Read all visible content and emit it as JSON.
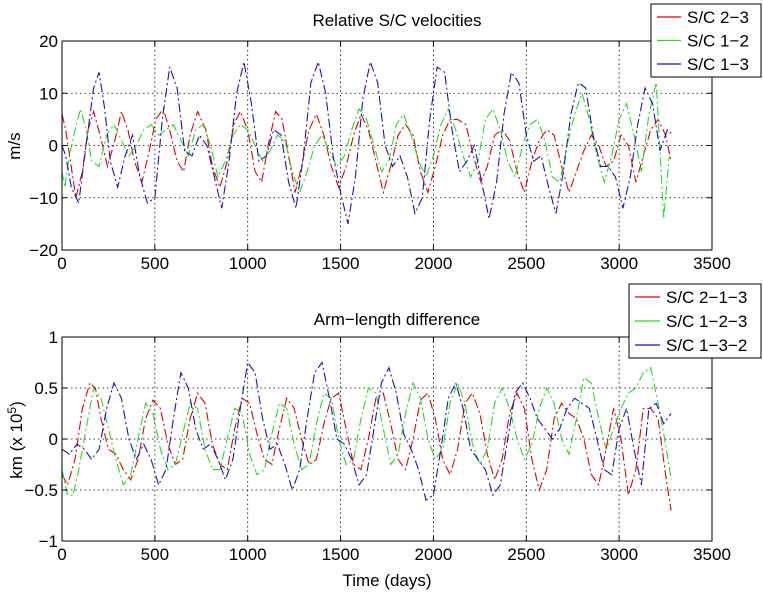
{
  "figure": {
    "xlabel": "Time (days)"
  },
  "chart_data": [
    {
      "type": "line",
      "title": "Relative S/C velocities",
      "xlabel": "",
      "ylabel": "m/s",
      "xlim": [
        0,
        3500
      ],
      "ylim": [
        -20,
        20
      ],
      "x_ticks": [
        0,
        500,
        1000,
        1500,
        2000,
        2500,
        3000,
        3500
      ],
      "y_ticks": [
        -20,
        -10,
        0,
        10,
        20
      ],
      "y_tick_labels": [
        "−20",
        "−10",
        "0",
        "10",
        "20"
      ],
      "grid": true,
      "legend_position": "top-right",
      "series": [
        {
          "name": "S/C 2−3",
          "color": "#e00000",
          "x": [
            0,
            20,
            45,
            75,
            110,
            140,
            170,
            205,
            245,
            285,
            320,
            355,
            390,
            430,
            470,
            505,
            545,
            580,
            620,
            655,
            690,
            730,
            775,
            810,
            850,
            890,
            925,
            960,
            1000,
            1040,
            1075,
            1110,
            1150,
            1185,
            1220,
            1255,
            1290,
            1330,
            1370,
            1410,
            1450,
            1490,
            1530,
            1570,
            1610,
            1650,
            1690,
            1730,
            1770,
            1810,
            1850,
            1890,
            1930,
            1970,
            2010,
            2050,
            2090,
            2130,
            2175,
            2215,
            2255,
            2290,
            2330,
            2370,
            2410,
            2450,
            2490,
            2530,
            2570,
            2610,
            2650,
            2690,
            2730,
            2770,
            2810,
            2850,
            2890,
            2930,
            2970,
            3010,
            3050,
            3090,
            3130,
            3170,
            3210,
            3250,
            3280
          ],
          "values": [
            6,
            3,
            -3,
            -10,
            -5,
            3,
            6.5,
            2,
            -4,
            1,
            6.5,
            3,
            -3,
            -7,
            -1,
            5,
            7,
            3,
            -3,
            -5,
            2,
            6.5,
            3,
            -4,
            -8,
            -3,
            4,
            6.5,
            3,
            -5,
            -7,
            0,
            6.5,
            5,
            -2,
            -9,
            -4,
            3,
            6,
            2,
            -4,
            -8,
            -4,
            2,
            6,
            3,
            -3,
            -9,
            -4,
            2,
            4,
            2,
            -5,
            -9,
            -4,
            2,
            5,
            5,
            4,
            -2,
            -7,
            -4,
            2,
            3,
            1,
            -5,
            -9,
            -3,
            1,
            3,
            2,
            -4,
            -9,
            -5,
            -1,
            2,
            0,
            -4,
            -3,
            2,
            0,
            -7,
            -2,
            3,
            5,
            2,
            -3
          ]
        },
        {
          "name": "S/C 1−2",
          "color": "#22dd22",
          "x": [
            0,
            15,
            40,
            70,
            100,
            130,
            160,
            200,
            240,
            280,
            320,
            360,
            400,
            440,
            480,
            520,
            560,
            600,
            640,
            680,
            720,
            760,
            800,
            840,
            880,
            920,
            960,
            1000,
            1040,
            1080,
            1120,
            1160,
            1200,
            1240,
            1280,
            1320,
            1360,
            1400,
            1440,
            1480,
            1520,
            1560,
            1600,
            1640,
            1680,
            1720,
            1760,
            1800,
            1840,
            1880,
            1920,
            1960,
            2000,
            2040,
            2080,
            2120,
            2160,
            2200,
            2240,
            2280,
            2320,
            2360,
            2400,
            2440,
            2480,
            2520,
            2560,
            2600,
            2640,
            2680,
            2720,
            2760,
            2800,
            2840,
            2880,
            2920,
            2960,
            3000,
            3040,
            3080,
            3120,
            3160,
            3200,
            3240,
            3270
          ],
          "values": [
            -5,
            -8,
            -2,
            3,
            7,
            3,
            -3,
            -4,
            2,
            4,
            1,
            -2,
            0,
            3,
            4,
            2,
            3,
            4,
            1,
            -2,
            3,
            4,
            0,
            -6,
            -3,
            2,
            4,
            3,
            0,
            -3,
            -1,
            2,
            1,
            -5,
            -9,
            -5,
            0,
            2,
            -1,
            -4,
            -2,
            3,
            7,
            5,
            0,
            -5,
            -3,
            4,
            6,
            2,
            -3,
            -6,
            -2,
            4,
            7,
            3,
            -2,
            -6,
            -3,
            5,
            7,
            3,
            -3,
            -6,
            0,
            4,
            5,
            1,
            -6,
            -7,
            0,
            6,
            10,
            5,
            -2,
            -7,
            -2,
            5,
            8,
            2,
            -5,
            6,
            12,
            -14,
            -2
          ]
        },
        {
          "name": "S/C 1−3",
          "color": "#1515c0",
          "x": [
            0,
            20,
            50,
            90,
            130,
            170,
            200,
            230,
            260,
            300,
            340,
            380,
            420,
            460,
            500,
            540,
            580,
            620,
            660,
            700,
            740,
            780,
            820,
            860,
            900,
            940,
            980,
            1020,
            1060,
            1100,
            1140,
            1180,
            1220,
            1260,
            1300,
            1340,
            1380,
            1420,
            1460,
            1500,
            1540,
            1580,
            1620,
            1660,
            1700,
            1740,
            1780,
            1820,
            1860,
            1900,
            1940,
            1980,
            2020,
            2060,
            2100,
            2140,
            2180,
            2220,
            2260,
            2300,
            2340,
            2380,
            2420,
            2460,
            2500,
            2540,
            2580,
            2620,
            2660,
            2700,
            2740,
            2780,
            2820,
            2860,
            2900,
            2940,
            2980,
            3020,
            3060,
            3100,
            3140,
            3180,
            3220,
            3260,
            3290
          ],
          "values": [
            0,
            -2,
            -8,
            -11,
            0,
            11,
            14,
            7,
            -3,
            -8,
            -2,
            2,
            -6,
            -11,
            -10,
            5,
            15,
            11,
            -1,
            -2,
            2,
            0,
            -6,
            -12,
            -3,
            10,
            16,
            8,
            -3,
            -2,
            3,
            2,
            -7,
            -12,
            -2,
            12,
            16,
            10,
            -2,
            -9,
            -15,
            -6,
            9,
            16,
            12,
            0,
            -4,
            -2,
            -6,
            -13,
            -10,
            5,
            15,
            14,
            3,
            -5,
            -3,
            0,
            -7,
            -14,
            -7,
            6,
            14,
            12,
            2,
            -3,
            -2,
            -8,
            -13,
            -5,
            6,
            12,
            11,
            2,
            -4,
            -4,
            -6,
            -12,
            -6,
            4,
            11,
            8,
            -1,
            3,
            2
          ]
        }
      ]
    },
    {
      "type": "line",
      "title": "Arm−length difference",
      "xlabel": "Time (days)",
      "ylabel_text": "km (x 10",
      "ylabel_exp": "5",
      "ylabel_close": ")",
      "xlim": [
        0,
        3500
      ],
      "ylim": [
        -1,
        1
      ],
      "x_ticks": [
        0,
        500,
        1000,
        1500,
        2000,
        2500,
        3000,
        3500
      ],
      "y_ticks": [
        -1,
        -0.5,
        0,
        0.5,
        1
      ],
      "y_tick_labels": [
        "−1",
        "−0.5",
        "0",
        "0.5",
        "1"
      ],
      "grid": true,
      "legend_position": "top-right",
      "series": [
        {
          "name": "S/C 2−1−3",
          "color": "#e00000",
          "x": [
            0,
            30,
            70,
            110,
            150,
            180,
            210,
            250,
            290,
            330,
            370,
            410,
            450,
            490,
            530,
            570,
            610,
            650,
            690,
            730,
            770,
            810,
            850,
            890,
            930,
            970,
            1010,
            1050,
            1090,
            1130,
            1170,
            1210,
            1250,
            1290,
            1330,
            1370,
            1410,
            1450,
            1490,
            1530,
            1570,
            1610,
            1650,
            1690,
            1730,
            1770,
            1810,
            1850,
            1890,
            1930,
            1970,
            2010,
            2050,
            2090,
            2130,
            2170,
            2210,
            2250,
            2290,
            2330,
            2370,
            2410,
            2450,
            2490,
            2530,
            2570,
            2610,
            2650,
            2690,
            2730,
            2770,
            2810,
            2850,
            2890,
            2930,
            2970,
            3010,
            3050,
            3090,
            3130,
            3170,
            3210,
            3250,
            3280
          ],
          "values": [
            -0.35,
            -0.45,
            -0.2,
            0.3,
            0.55,
            0.5,
            0.2,
            -0.1,
            -0.15,
            -0.3,
            -0.4,
            -0.2,
            0.2,
            0.38,
            0.3,
            -0.05,
            -0.25,
            -0.2,
            0.2,
            0.45,
            0.35,
            -0.05,
            -0.25,
            -0.3,
            0.1,
            0.4,
            0.35,
            0.05,
            -0.2,
            -0.25,
            0.1,
            0.4,
            0.3,
            0.0,
            -0.25,
            -0.2,
            0.15,
            0.4,
            0.45,
            0.1,
            -0.25,
            -0.3,
            0.0,
            0.4,
            0.45,
            0.15,
            -0.2,
            -0.3,
            0.0,
            0.38,
            0.45,
            0.2,
            -0.2,
            -0.35,
            -0.1,
            0.35,
            0.45,
            0.25,
            -0.15,
            -0.4,
            -0.2,
            0.25,
            0.45,
            0.3,
            -0.2,
            -0.5,
            -0.3,
            0.2,
            0.35,
            0.25,
            0.2,
            0.0,
            -0.35,
            -0.45,
            -0.1,
            0.3,
            0.0,
            -0.55,
            -0.3,
            0.3,
            0.3,
            0.2,
            -0.35,
            -0.7
          ]
        },
        {
          "name": "S/C 1−2−3",
          "color": "#22dd22",
          "x": [
            0,
            30,
            60,
            90,
            130,
            170,
            210,
            250,
            290,
            330,
            370,
            410,
            450,
            490,
            530,
            570,
            610,
            650,
            690,
            730,
            770,
            810,
            850,
            890,
            930,
            970,
            1010,
            1050,
            1090,
            1130,
            1170,
            1210,
            1250,
            1290,
            1330,
            1370,
            1410,
            1450,
            1490,
            1530,
            1570,
            1610,
            1650,
            1690,
            1730,
            1770,
            1810,
            1850,
            1890,
            1930,
            1970,
            2010,
            2050,
            2090,
            2130,
            2170,
            2210,
            2250,
            2290,
            2330,
            2370,
            2410,
            2450,
            2490,
            2530,
            2570,
            2610,
            2650,
            2690,
            2730,
            2770,
            2810,
            2850,
            2890,
            2930,
            2970,
            3010,
            3050,
            3090,
            3130,
            3170,
            3210,
            3250,
            3280
          ],
          "values": [
            -0.3,
            -0.55,
            -0.55,
            -0.3,
            0.1,
            0.5,
            0.4,
            0.1,
            -0.2,
            -0.45,
            -0.35,
            0.0,
            0.35,
            0.25,
            -0.1,
            -0.3,
            -0.25,
            0.05,
            0.35,
            0.3,
            -0.1,
            -0.3,
            -0.3,
            0.0,
            0.3,
            0.25,
            -0.15,
            -0.35,
            -0.3,
            0.05,
            0.35,
            0.3,
            -0.05,
            -0.3,
            -0.25,
            0.15,
            0.45,
            0.4,
            0.0,
            -0.25,
            -0.2,
            0.2,
            0.5,
            0.45,
            0.1,
            -0.25,
            -0.15,
            0.25,
            0.55,
            0.4,
            0.0,
            -0.2,
            -0.1,
            0.35,
            0.55,
            0.35,
            -0.05,
            -0.25,
            -0.1,
            0.35,
            0.5,
            0.3,
            0.0,
            -0.2,
            -0.05,
            0.3,
            0.5,
            0.35,
            0.0,
            -0.15,
            0.2,
            0.6,
            0.55,
            0.2,
            -0.1,
            0.1,
            0.3,
            0.45,
            0.5,
            0.65,
            0.7,
            0.35,
            -0.05,
            -0.4
          ]
        },
        {
          "name": "S/C 1−3−2",
          "color": "#1515c0",
          "x": [
            0,
            40,
            80,
            120,
            160,
            200,
            240,
            280,
            320,
            360,
            400,
            440,
            480,
            520,
            560,
            600,
            640,
            680,
            720,
            760,
            800,
            840,
            880,
            920,
            960,
            1000,
            1040,
            1080,
            1120,
            1160,
            1200,
            1240,
            1280,
            1320,
            1360,
            1400,
            1440,
            1480,
            1520,
            1560,
            1600,
            1640,
            1680,
            1720,
            1760,
            1800,
            1840,
            1880,
            1920,
            1960,
            2000,
            2040,
            2080,
            2120,
            2160,
            2200,
            2240,
            2280,
            2320,
            2360,
            2400,
            2440,
            2480,
            2520,
            2560,
            2600,
            2640,
            2680,
            2720,
            2760,
            2800,
            2840,
            2880,
            2920,
            2960,
            3000,
            3040,
            3080,
            3120,
            3160,
            3200,
            3240,
            3280
          ],
          "values": [
            -0.1,
            -0.15,
            -0.05,
            -0.1,
            -0.2,
            -0.1,
            0.3,
            0.55,
            0.4,
            0.0,
            -0.2,
            -0.05,
            -0.2,
            -0.45,
            -0.3,
            0.2,
            0.65,
            0.5,
            0.1,
            -0.1,
            -0.05,
            -0.2,
            -0.4,
            -0.2,
            0.3,
            0.75,
            0.65,
            0.2,
            -0.1,
            -0.05,
            -0.25,
            -0.5,
            -0.3,
            0.2,
            0.65,
            0.75,
            0.4,
            0.0,
            -0.05,
            -0.2,
            -0.45,
            -0.35,
            0.1,
            0.55,
            0.7,
            0.45,
            0.05,
            -0.1,
            -0.3,
            -0.6,
            -0.55,
            -0.1,
            0.4,
            0.55,
            0.3,
            -0.1,
            -0.2,
            -0.3,
            -0.55,
            -0.45,
            0.0,
            0.45,
            0.55,
            0.4,
            0.2,
            0.1,
            0.0,
            0.1,
            0.3,
            0.4,
            0.35,
            0.3,
            0.0,
            -0.3,
            -0.35,
            0.1,
            0.3,
            -0.1,
            -0.45,
            0.3,
            0.35,
            0.15,
            0.25
          ]
        }
      ]
    }
  ]
}
